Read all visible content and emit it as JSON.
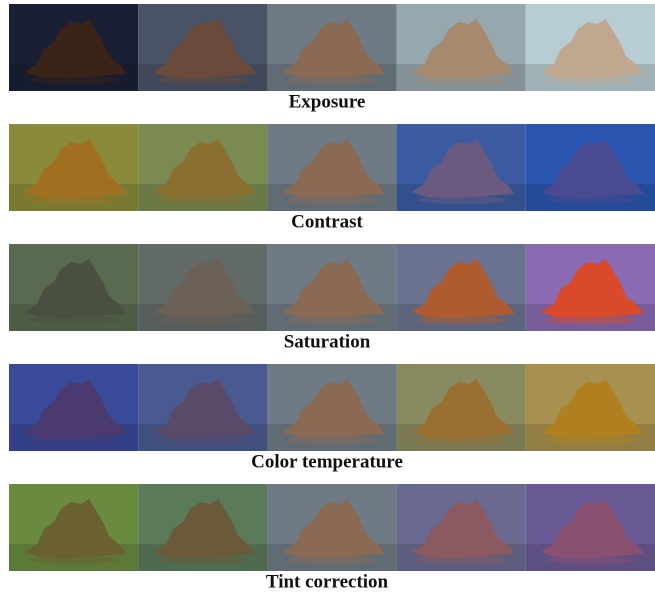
{
  "rows": [
    {
      "label": "Exposure"
    },
    {
      "label": "Contrast"
    },
    {
      "label": "Saturation"
    },
    {
      "label": "Color temperature"
    },
    {
      "label": "Tint correction"
    }
  ]
}
